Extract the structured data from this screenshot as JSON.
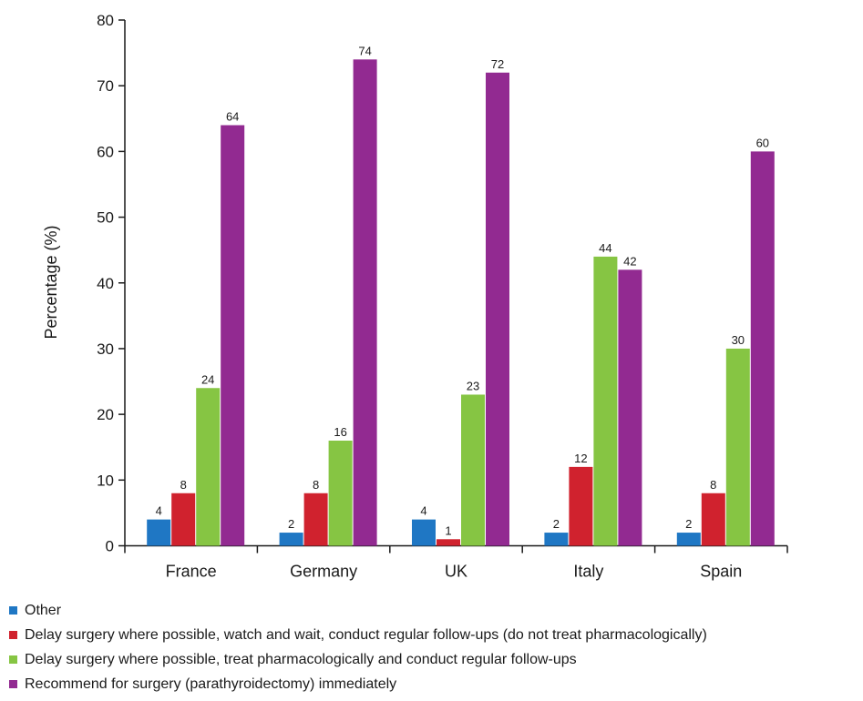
{
  "chart_data": {
    "type": "bar",
    "title": "",
    "xlabel": "",
    "ylabel": "Percentage (%)",
    "ylim": [
      0,
      80
    ],
    "yticks": [
      "0",
      "10",
      "20",
      "30",
      "40",
      "50",
      "60",
      "70",
      "80"
    ],
    "grid": false,
    "legend_position": "bottom-left",
    "categories": [
      "France",
      "Germany",
      "UK",
      "Italy",
      "Spain"
    ],
    "series": [
      {
        "name": "Other",
        "color": "#1f77c4",
        "values": [
          4,
          2,
          4,
          2,
          2
        ]
      },
      {
        "name": "Delay surgery where possible, watch and wait, conduct regular follow-ups (do not treat pharmacologically)",
        "color": "#d0222e",
        "values": [
          8,
          8,
          1,
          12,
          8
        ]
      },
      {
        "name": "Delay surgery where possible, treat pharmacologically and conduct regular follow-ups",
        "color": "#86c543",
        "values": [
          24,
          16,
          23,
          44,
          30
        ]
      },
      {
        "name": "Recommend for surgery (parathyroidectomy) immediately",
        "color": "#922a91",
        "values": [
          64,
          74,
          72,
          42,
          60
        ]
      }
    ]
  }
}
